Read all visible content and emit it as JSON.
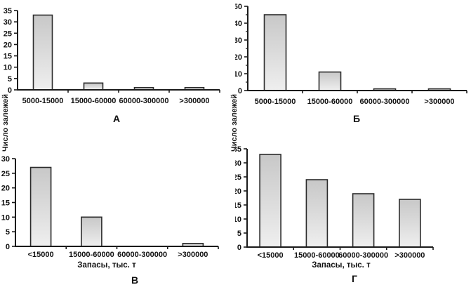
{
  "figure": {
    "ylabel": "Число залежей",
    "colors": {
      "background": "#ffffff",
      "bar_fill_top": "#c8c8c8",
      "bar_fill_mid": "#d9d9d9",
      "bar_fill_bottom": "#efefef",
      "bar_border": "#2b2b2b",
      "axis": "#1a1a1a",
      "text": "#111111"
    }
  },
  "chart_data": [
    {
      "type": "bar",
      "panel_label": "А",
      "categories": [
        "5000-15000",
        "15000-60000",
        "60000-300000",
        ">300000"
      ],
      "values": [
        33,
        3,
        1,
        1
      ],
      "title": "",
      "xlabel": "",
      "ylabel": "Число залежей",
      "ylim": [
        0,
        35
      ],
      "ytick_step": 5,
      "grid": false,
      "legend": false
    },
    {
      "type": "bar",
      "panel_label": "Б",
      "categories": [
        "5000-15000",
        "15000-60000",
        "60000-300000",
        ">300000"
      ],
      "values": [
        45,
        11,
        1,
        1
      ],
      "title": "",
      "xlabel": "",
      "ylabel": "Число залежей",
      "ylim": [
        0,
        50
      ],
      "ytick_step": 10,
      "ytick_minor_step": 5,
      "grid": false,
      "legend": false
    },
    {
      "type": "bar",
      "panel_label": "В",
      "categories": [
        "<15000",
        "15000-60000",
        "60000-300000",
        ">300000"
      ],
      "values": [
        27,
        10,
        0,
        1
      ],
      "title": "",
      "xlabel": "Запасы, тыс. т",
      "ylabel": "Число залежей",
      "ylim": [
        0,
        30
      ],
      "ytick_step": 5,
      "grid": false,
      "legend": false
    },
    {
      "type": "bar",
      "panel_label": "Г",
      "categories": [
        "<15000",
        "15000-60000",
        "60000-300000",
        ">300000"
      ],
      "values": [
        33,
        24,
        19,
        17
      ],
      "title": "",
      "xlabel": "Запасы, тыс. т",
      "ylabel": "Число залежей",
      "ylim": [
        0,
        35
      ],
      "ytick_step": 5,
      "grid": false,
      "legend": false
    }
  ]
}
